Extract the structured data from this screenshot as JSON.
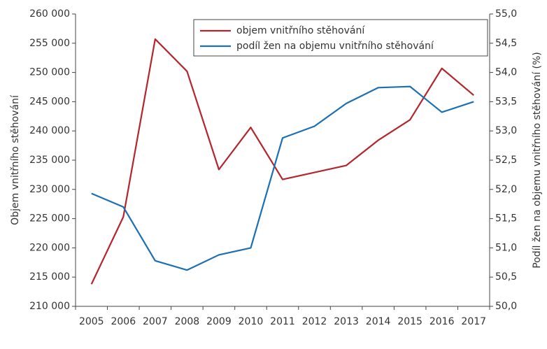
{
  "chart_data": {
    "type": "line",
    "categories": [
      "2005",
      "2006",
      "2007",
      "2008",
      "2009",
      "2010",
      "2011",
      "2012",
      "2013",
      "2014",
      "2015",
      "2016",
      "2017"
    ],
    "series": [
      {
        "name": "objem vnitřního stěhování",
        "color": "#b3262d",
        "values": [
          213800,
          225300,
          255700,
          250200,
          233400,
          240600,
          231700,
          232900,
          234100,
          238400,
          241900,
          250700,
          246100
        ]
      },
      {
        "name": "podíl žen na objemu vnitřního stěhování",
        "color": "#1b6fb3",
        "axis": "y2",
        "values": [
          51.93,
          51.7,
          50.78,
          50.62,
          50.88,
          51.0,
          52.88,
          53.08,
          53.47,
          53.74,
          53.76,
          53.32,
          53.5
        ]
      }
    ],
    "ylabel": "Objem vnitřního stěhování",
    "y2label": "Podíl žen na objemu vnitřního stěhování (%)",
    "ylim": [
      210000,
      260000
    ],
    "yticks": [
      {
        "value": 210000,
        "label": "210 000"
      },
      {
        "value": 215000,
        "label": "215 000"
      },
      {
        "value": 220000,
        "label": "220 000"
      },
      {
        "value": 225000,
        "label": "225 000"
      },
      {
        "value": 230000,
        "label": "230 000"
      },
      {
        "value": 235000,
        "label": "235 000"
      },
      {
        "value": 240000,
        "label": "240 000"
      },
      {
        "value": 245000,
        "label": "245 000"
      },
      {
        "value": 250000,
        "label": "250 000"
      },
      {
        "value": 255000,
        "label": "255 000"
      },
      {
        "value": 260000,
        "label": "260 000"
      }
    ],
    "y2lim": [
      50,
      55
    ],
    "y2ticks": [
      {
        "value": 50,
        "label": "50,0"
      },
      {
        "value": 50.5,
        "label": "50,5"
      },
      {
        "value": 51,
        "label": "51,0"
      },
      {
        "value": 51.5,
        "label": "51,5"
      },
      {
        "value": 52,
        "label": "52,0"
      },
      {
        "value": 52.5,
        "label": "52,5"
      },
      {
        "value": 53,
        "label": "53,0"
      },
      {
        "value": 53.5,
        "label": "53,5"
      },
      {
        "value": 54,
        "label": "54,0"
      },
      {
        "value": 54.5,
        "label": "54,5"
      },
      {
        "value": 55,
        "label": "55,0"
      }
    ],
    "legend": "top-right"
  }
}
